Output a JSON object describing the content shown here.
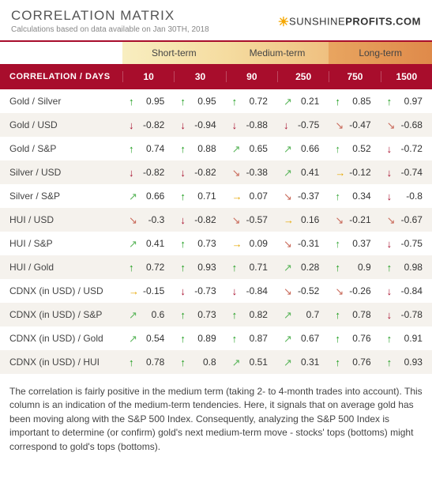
{
  "header": {
    "title": "CORRELATION MATRIX",
    "subtitle": "Calculations based on data available on Jan 30TH, 2018",
    "logo_part1": "SUNSHINE",
    "logo_part2": "PROFITS.COM"
  },
  "terms": {
    "short": "Short-term",
    "medium": "Medium-term",
    "long": "Long-term"
  },
  "columns_label": "CORRELATION / DAYS",
  "days": [
    "10",
    "30",
    "90",
    "250",
    "750",
    "1500"
  ],
  "rows": [
    {
      "label": "Gold / Silver",
      "cells": [
        {
          "v": "0.95",
          "a": "strong-up"
        },
        {
          "v": "0.95",
          "a": "strong-up"
        },
        {
          "v": "0.72",
          "a": "strong-up"
        },
        {
          "v": "0.21",
          "a": "flat-up"
        },
        {
          "v": "0.85",
          "a": "strong-up"
        },
        {
          "v": "0.97",
          "a": "strong-up"
        }
      ]
    },
    {
      "label": "Gold / USD",
      "cells": [
        {
          "v": "-0.82",
          "a": "strong-down"
        },
        {
          "v": "-0.94",
          "a": "strong-down"
        },
        {
          "v": "-0.88",
          "a": "strong-down"
        },
        {
          "v": "-0.75",
          "a": "strong-down"
        },
        {
          "v": "-0.47",
          "a": "flat-down"
        },
        {
          "v": "-0.68",
          "a": "flat-down"
        }
      ]
    },
    {
      "label": "Gold / S&P",
      "cells": [
        {
          "v": "0.74",
          "a": "strong-up"
        },
        {
          "v": "0.88",
          "a": "strong-up"
        },
        {
          "v": "0.65",
          "a": "flat-up"
        },
        {
          "v": "0.66",
          "a": "flat-up"
        },
        {
          "v": "0.52",
          "a": "up"
        },
        {
          "v": "-0.72",
          "a": "strong-down"
        }
      ]
    },
    {
      "label": "Silver / USD",
      "cells": [
        {
          "v": "-0.82",
          "a": "strong-down"
        },
        {
          "v": "-0.82",
          "a": "strong-down"
        },
        {
          "v": "-0.38",
          "a": "flat-down"
        },
        {
          "v": "0.41",
          "a": "flat-up"
        },
        {
          "v": "-0.12",
          "a": "flat"
        },
        {
          "v": "-0.74",
          "a": "strong-down"
        }
      ]
    },
    {
      "label": "Silver / S&P",
      "cells": [
        {
          "v": "0.66",
          "a": "flat-up"
        },
        {
          "v": "0.71",
          "a": "strong-up"
        },
        {
          "v": "0.07",
          "a": "flat"
        },
        {
          "v": "-0.37",
          "a": "flat-down"
        },
        {
          "v": "0.34",
          "a": "up"
        },
        {
          "v": "-0.8",
          "a": "strong-down"
        }
      ]
    },
    {
      "label": "HUI / USD",
      "cells": [
        {
          "v": "-0.3",
          "a": "flat-down"
        },
        {
          "v": "-0.82",
          "a": "strong-down"
        },
        {
          "v": "-0.57",
          "a": "flat-down"
        },
        {
          "v": "0.16",
          "a": "flat"
        },
        {
          "v": "-0.21",
          "a": "flat-down"
        },
        {
          "v": "-0.67",
          "a": "flat-down"
        }
      ]
    },
    {
      "label": "HUI / S&P",
      "cells": [
        {
          "v": "0.41",
          "a": "flat-up"
        },
        {
          "v": "0.73",
          "a": "strong-up"
        },
        {
          "v": "0.09",
          "a": "flat"
        },
        {
          "v": "-0.31",
          "a": "flat-down"
        },
        {
          "v": "0.37",
          "a": "up"
        },
        {
          "v": "-0.75",
          "a": "strong-down"
        }
      ]
    },
    {
      "label": "HUI / Gold",
      "cells": [
        {
          "v": "0.72",
          "a": "strong-up"
        },
        {
          "v": "0.93",
          "a": "strong-up"
        },
        {
          "v": "0.71",
          "a": "strong-up"
        },
        {
          "v": "0.28",
          "a": "flat-up"
        },
        {
          "v": "0.9",
          "a": "strong-up"
        },
        {
          "v": "0.98",
          "a": "strong-up"
        }
      ]
    },
    {
      "label": "CDNX (in USD) / USD",
      "cells": [
        {
          "v": "-0.15",
          "a": "flat"
        },
        {
          "v": "-0.73",
          "a": "strong-down"
        },
        {
          "v": "-0.84",
          "a": "strong-down"
        },
        {
          "v": "-0.52",
          "a": "flat-down"
        },
        {
          "v": "-0.26",
          "a": "flat-down"
        },
        {
          "v": "-0.84",
          "a": "strong-down"
        }
      ]
    },
    {
      "label": "CDNX (in USD) / S&P",
      "cells": [
        {
          "v": "0.6",
          "a": "flat-up"
        },
        {
          "v": "0.73",
          "a": "strong-up"
        },
        {
          "v": "0.82",
          "a": "strong-up"
        },
        {
          "v": "0.7",
          "a": "flat-up"
        },
        {
          "v": "0.78",
          "a": "strong-up"
        },
        {
          "v": "-0.78",
          "a": "strong-down"
        }
      ]
    },
    {
      "label": "CDNX (in USD) / Gold",
      "cells": [
        {
          "v": "0.54",
          "a": "flat-up"
        },
        {
          "v": "0.89",
          "a": "strong-up"
        },
        {
          "v": "0.87",
          "a": "strong-up"
        },
        {
          "v": "0.67",
          "a": "flat-up"
        },
        {
          "v": "0.76",
          "a": "strong-up"
        },
        {
          "v": "0.91",
          "a": "strong-up"
        }
      ]
    },
    {
      "label": "CDNX (in USD) / HUI",
      "cells": [
        {
          "v": "0.78",
          "a": "strong-up"
        },
        {
          "v": "0.8",
          "a": "strong-up"
        },
        {
          "v": "0.51",
          "a": "flat-up"
        },
        {
          "v": "0.31",
          "a": "flat-up"
        },
        {
          "v": "0.76",
          "a": "strong-up"
        },
        {
          "v": "0.93",
          "a": "strong-up"
        }
      ]
    }
  ],
  "arrow_glyphs": {
    "strong-up": "↑",
    "up": "↑",
    "flat-up": "↗",
    "flat": "→",
    "flat-down": "↘",
    "down": "↓",
    "strong-down": "↓"
  },
  "footer_text": "The correlation is fairly positive in the medium term (taking 2- to 4-month trades into account). This column is an indication of the medium-term tendencies. Here, it signals that on average gold has been moving along with the S&P 500 Index. Consequently, analyzing the S&P 500 Index is important to determine (or confirm) gold's next medium-term move - stocks' tops (bottoms) might correspond to gold's tops (bottoms).",
  "styling": {
    "accent_color": "#a80d2c",
    "row_alt_bg": "#f5f2ed",
    "term_gradient_start": "#f8eec0",
    "term_gradient_end": "#df8a4a",
    "title_color": "#555",
    "subtitle_color": "#888",
    "text_color": "#333"
  }
}
